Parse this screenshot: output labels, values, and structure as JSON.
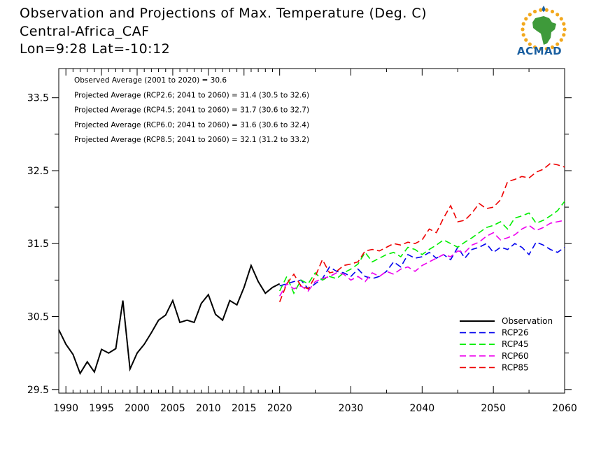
{
  "header": {
    "title": "Observation and Projections of Max. Temperature (Deg. C)",
    "region": "Central-Africa_CAF",
    "coords": "Lon=9:28   Lat=-10:12",
    "logo_text": "ACMAD"
  },
  "colors": {
    "observation": "#000000",
    "RCP26": "#0000ee",
    "RCP45": "#00ee00",
    "RCP60": "#ee00ee",
    "RCP85": "#ee0000",
    "logo_text": "#1a5fa0",
    "logo_africa": "#3e9a3a",
    "logo_ring": "#f2a81d"
  },
  "chart_data": {
    "type": "line",
    "title": "Observation and Projections of Max. Temperature (Deg. C)",
    "xlim": [
      1989,
      2060
    ],
    "ylim": [
      29.45,
      33.9
    ],
    "x_ticks": [
      1990,
      1995,
      2000,
      2005,
      2010,
      2015,
      2020,
      2030,
      2040,
      2050,
      2060
    ],
    "y_ticks": [
      29.5,
      30.5,
      31.5,
      32.5,
      33.5
    ],
    "y_tick_labels": [
      "29.5",
      "30.5",
      "31.5",
      "32.5",
      "33.5"
    ],
    "legend_position": "bottom-right",
    "annotations": [
      "Observed Average (2001 to 2020) = 30.6",
      "Projected Average (RCP2.6; 2041 to 2060) = 31.4 (30.5 to 32.6)",
      "Projected Average (RCP4.5; 2041 to 2060) = 31.7 (30.6 to 32.7)",
      "Projected Average (RCP6.0; 2041 to 2060) = 31.6 (30.6 to 32.4)",
      "Projected Average (RCP8.5; 2041 to 2060) = 32.1 (31.2 to 33.2)"
    ],
    "series": [
      {
        "name": "Observation",
        "style": "solid",
        "x": [
          1989,
          1990,
          1991,
          1992,
          1993,
          1994,
          1995,
          1996,
          1997,
          1998,
          1999,
          2000,
          2001,
          2002,
          2003,
          2004,
          2005,
          2006,
          2007,
          2008,
          2009,
          2010,
          2011,
          2012,
          2013,
          2014,
          2015,
          2016,
          2017,
          2018,
          2019,
          2020
        ],
        "y": [
          30.32,
          30.12,
          29.98,
          29.72,
          29.88,
          29.74,
          30.05,
          30.0,
          30.06,
          30.72,
          29.78,
          30.0,
          30.12,
          30.28,
          30.45,
          30.52,
          30.72,
          30.42,
          30.45,
          30.42,
          30.68,
          30.8,
          30.53,
          30.45,
          30.72,
          30.66,
          30.9,
          31.2,
          30.98,
          30.82,
          30.9,
          30.95
        ]
      },
      {
        "name": "RCP26",
        "style": "dashed",
        "x": [
          2020,
          2021,
          2022,
          2023,
          2024,
          2025,
          2026,
          2027,
          2028,
          2029,
          2030,
          2031,
          2032,
          2033,
          2034,
          2035,
          2036,
          2037,
          2038,
          2039,
          2040,
          2041,
          2042,
          2043,
          2044,
          2045,
          2046,
          2047,
          2048,
          2049,
          2050,
          2051,
          2052,
          2053,
          2054,
          2055,
          2056,
          2057,
          2058,
          2059,
          2060
        ],
        "y": [
          30.92,
          30.95,
          30.98,
          31.0,
          30.88,
          30.95,
          31.02,
          31.18,
          31.12,
          31.1,
          31.05,
          31.15,
          31.05,
          31.02,
          31.05,
          31.12,
          31.25,
          31.18,
          31.35,
          31.3,
          31.32,
          31.38,
          31.3,
          31.35,
          31.28,
          31.45,
          31.3,
          31.42,
          31.45,
          31.5,
          31.38,
          31.45,
          31.42,
          31.5,
          31.45,
          31.35,
          31.52,
          31.48,
          31.42,
          31.38,
          31.45
        ]
      },
      {
        "name": "RCP45",
        "style": "dashed",
        "x": [
          2020,
          2021,
          2022,
          2023,
          2024,
          2025,
          2026,
          2027,
          2028,
          2029,
          2030,
          2031,
          2032,
          2033,
          2034,
          2035,
          2036,
          2037,
          2038,
          2039,
          2040,
          2041,
          2042,
          2043,
          2044,
          2045,
          2046,
          2047,
          2048,
          2049,
          2050,
          2051,
          2052,
          2053,
          2054,
          2055,
          2056,
          2057,
          2058,
          2059,
          2060
        ],
        "y": [
          30.85,
          31.05,
          30.82,
          31.0,
          30.95,
          31.1,
          31.0,
          31.05,
          31.02,
          31.1,
          31.15,
          31.22,
          31.38,
          31.25,
          31.3,
          31.35,
          31.38,
          31.32,
          31.45,
          31.42,
          31.35,
          31.42,
          31.48,
          31.55,
          31.5,
          31.45,
          31.52,
          31.58,
          31.65,
          31.72,
          31.75,
          31.8,
          31.7,
          31.85,
          31.88,
          31.92,
          31.78,
          31.82,
          31.88,
          31.95,
          32.08
        ]
      },
      {
        "name": "RCP60",
        "style": "dashed",
        "x": [
          2020,
          2021,
          2022,
          2023,
          2024,
          2025,
          2026,
          2027,
          2028,
          2029,
          2030,
          2031,
          2032,
          2033,
          2034,
          2035,
          2036,
          2037,
          2038,
          2039,
          2040,
          2041,
          2042,
          2043,
          2044,
          2045,
          2046,
          2047,
          2048,
          2049,
          2050,
          2051,
          2052,
          2053,
          2054,
          2055,
          2056,
          2057,
          2058,
          2059,
          2060
        ],
        "y": [
          30.78,
          30.95,
          30.88,
          30.92,
          30.85,
          30.98,
          31.02,
          31.05,
          31.1,
          31.08,
          31.0,
          31.05,
          30.98,
          31.1,
          31.05,
          31.12,
          31.08,
          31.15,
          31.18,
          31.12,
          31.2,
          31.25,
          31.3,
          31.35,
          31.32,
          31.4,
          31.38,
          31.48,
          31.52,
          31.6,
          31.65,
          31.55,
          31.58,
          31.62,
          31.7,
          31.75,
          31.68,
          31.72,
          31.78,
          31.8,
          31.82
        ]
      },
      {
        "name": "RCP85",
        "style": "dashed",
        "x": [
          2020,
          2021,
          2022,
          2023,
          2024,
          2025,
          2026,
          2027,
          2028,
          2029,
          2030,
          2031,
          2032,
          2033,
          2034,
          2035,
          2036,
          2037,
          2038,
          2039,
          2040,
          2041,
          2042,
          2043,
          2044,
          2045,
          2046,
          2047,
          2048,
          2049,
          2050,
          2051,
          2052,
          2053,
          2054,
          2055,
          2056,
          2057,
          2058,
          2059,
          2060
        ],
        "y": [
          30.7,
          30.95,
          31.08,
          30.92,
          30.88,
          31.05,
          31.28,
          31.1,
          31.12,
          31.2,
          31.22,
          31.25,
          31.4,
          31.42,
          31.4,
          31.45,
          31.5,
          31.48,
          31.52,
          31.5,
          31.55,
          31.7,
          31.65,
          31.85,
          32.02,
          31.8,
          31.82,
          31.92,
          32.05,
          31.98,
          32.0,
          32.1,
          32.35,
          32.38,
          32.42,
          32.4,
          32.48,
          32.52,
          32.6,
          32.58,
          32.55
        ]
      }
    ]
  }
}
